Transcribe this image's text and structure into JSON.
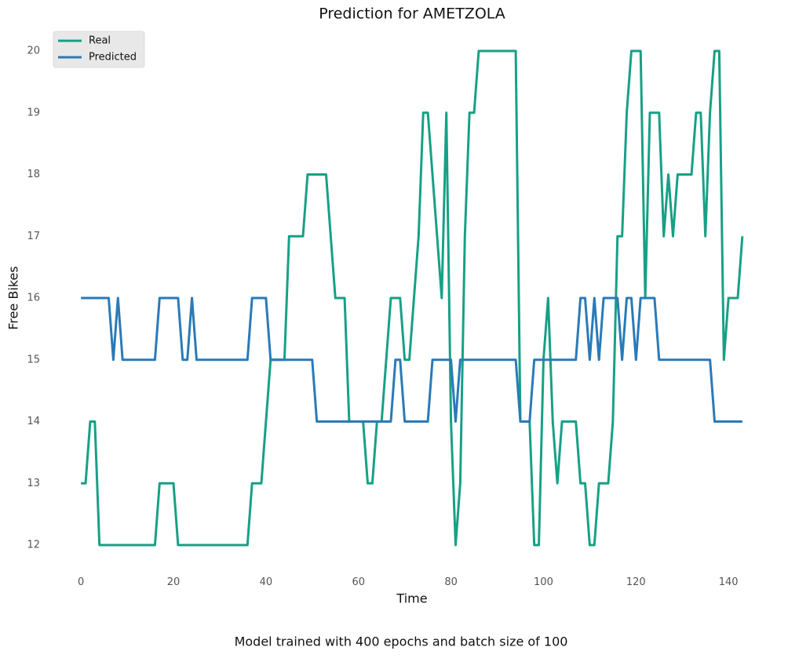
{
  "chart_data": {
    "type": "line",
    "title": "Prediction for AMETZOLA",
    "xlabel": "Time",
    "ylabel": "Free Bikes",
    "footnote": "Model trained with 400 epochs and batch size of 100",
    "x": [
      0,
      1,
      2,
      3,
      4,
      5,
      6,
      7,
      8,
      9,
      10,
      11,
      12,
      13,
      14,
      15,
      16,
      17,
      18,
      19,
      20,
      21,
      22,
      23,
      24,
      25,
      26,
      27,
      28,
      29,
      30,
      31,
      32,
      33,
      34,
      35,
      36,
      37,
      38,
      39,
      40,
      41,
      42,
      43,
      44,
      45,
      46,
      47,
      48,
      49,
      50,
      51,
      52,
      53,
      54,
      55,
      56,
      57,
      58,
      59,
      60,
      61,
      62,
      63,
      64,
      65,
      66,
      67,
      68,
      69,
      70,
      71,
      72,
      73,
      74,
      75,
      76,
      77,
      78,
      79,
      80,
      81,
      82,
      83,
      84,
      85,
      86,
      87,
      88,
      89,
      90,
      91,
      92,
      93,
      94,
      95,
      96,
      97,
      98,
      99,
      100,
      101,
      102,
      103,
      104,
      105,
      106,
      107,
      108,
      109,
      110,
      111,
      112,
      113,
      114,
      115,
      116,
      117,
      118,
      119,
      120,
      121,
      122,
      123,
      124,
      125,
      126,
      127,
      128,
      129,
      130,
      131,
      132,
      133,
      134,
      135,
      136,
      137,
      138,
      139,
      140,
      141,
      142,
      143
    ],
    "series": [
      {
        "name": "Real",
        "color": "#17a086",
        "values": [
          13,
          13,
          14,
          14,
          12,
          12,
          12,
          12,
          12,
          12,
          12,
          12,
          12,
          12,
          12,
          12,
          12,
          13,
          13,
          13,
          13,
          12,
          12,
          12,
          12,
          12,
          12,
          12,
          12,
          12,
          12,
          12,
          12,
          12,
          12,
          12,
          12,
          13,
          13,
          13,
          14,
          15,
          15,
          15,
          15,
          17,
          17,
          17,
          17,
          18,
          18,
          18,
          18,
          18,
          17,
          16,
          16,
          16,
          14,
          14,
          14,
          14,
          13,
          13,
          14,
          14,
          15,
          16,
          16,
          16,
          15,
          15,
          16,
          17,
          19,
          19,
          18,
          17,
          16,
          19,
          14,
          12,
          13,
          17,
          19,
          19,
          20,
          20,
          20,
          20,
          20,
          20,
          20,
          20,
          20,
          14,
          14,
          14,
          12,
          12,
          15,
          16,
          14,
          13,
          14,
          14,
          14,
          14,
          13,
          13,
          12,
          12,
          13,
          13,
          13,
          14,
          17,
          17,
          19,
          20,
          20,
          20,
          16,
          19,
          19,
          19,
          17,
          18,
          17,
          18,
          18,
          18,
          18,
          19,
          19,
          17,
          19,
          20,
          20,
          15,
          16,
          16,
          16,
          17
        ]
      },
      {
        "name": "Predicted",
        "color": "#2a7ab8",
        "values": [
          16,
          16,
          16,
          16,
          16,
          16,
          16,
          15,
          16,
          15,
          15,
          15,
          15,
          15,
          15,
          15,
          15,
          16,
          16,
          16,
          16,
          16,
          15,
          15,
          16,
          15,
          15,
          15,
          15,
          15,
          15,
          15,
          15,
          15,
          15,
          15,
          15,
          16,
          16,
          16,
          16,
          15,
          15,
          15,
          15,
          15,
          15,
          15,
          15,
          15,
          15,
          14,
          14,
          14,
          14,
          14,
          14,
          14,
          14,
          14,
          14,
          14,
          14,
          14,
          14,
          14,
          14,
          14,
          15,
          15,
          14,
          14,
          14,
          14,
          14,
          14,
          15,
          15,
          15,
          15,
          15,
          14,
          15,
          15,
          15,
          15,
          15,
          15,
          15,
          15,
          15,
          15,
          15,
          15,
          15,
          14,
          14,
          14,
          15,
          15,
          15,
          15,
          15,
          15,
          15,
          15,
          15,
          15,
          16,
          16,
          15,
          16,
          15,
          16,
          16,
          16,
          16,
          15,
          16,
          16,
          15,
          16,
          16,
          16,
          16,
          15,
          15,
          15,
          15,
          15,
          15,
          15,
          15,
          15,
          15,
          15,
          15,
          14,
          14,
          14,
          14,
          14,
          14,
          14
        ]
      }
    ],
    "xlim": [
      -7.15,
      150.15
    ],
    "ylim": [
      11.6,
      20.4
    ],
    "xticks": [
      0,
      20,
      40,
      60,
      80,
      100,
      120,
      140
    ],
    "yticks": [
      12,
      13,
      14,
      15,
      16,
      17,
      18,
      19,
      20
    ],
    "legend": "upper left"
  }
}
